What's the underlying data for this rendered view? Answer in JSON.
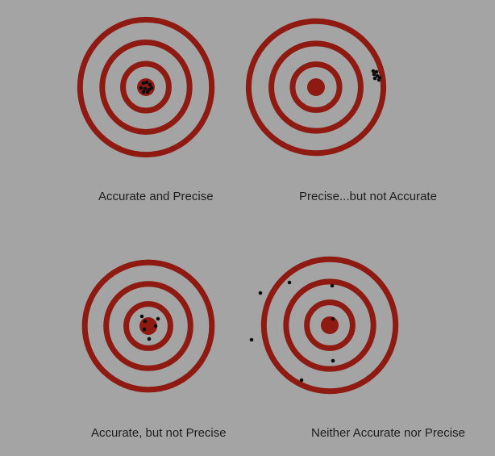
{
  "colors": {
    "background": "#a4a4a4",
    "ring": "#8e1a12",
    "dot": "#0d0d0d",
    "caption": "#1e1e1e"
  },
  "targets": [
    {
      "caption": "Accurate and Precise",
      "shots": [
        [
          -3,
          -5
        ],
        [
          1,
          -6
        ],
        [
          5,
          -3
        ],
        [
          -6,
          1
        ],
        [
          -1,
          2
        ],
        [
          4,
          3
        ],
        [
          -3,
          6
        ],
        [
          2,
          6
        ],
        [
          7,
          1
        ]
      ]
    },
    {
      "caption": "Precise...but not Accurate",
      "shots": [
        [
          71,
          -20
        ],
        [
          75,
          -19
        ],
        [
          72,
          -16
        ],
        [
          76,
          -14
        ],
        [
          79,
          -12
        ],
        [
          73,
          -11
        ],
        [
          78,
          -9
        ]
      ]
    },
    {
      "caption": "Accurate, but not Precise",
      "shots": [
        [
          -8,
          -12
        ],
        [
          -4,
          -6
        ],
        [
          12,
          -9
        ],
        [
          9,
          0
        ],
        [
          -5,
          4
        ],
        [
          1,
          16
        ]
      ]
    },
    {
      "caption": "Neither Accurate nor Precise",
      "shots": [
        [
          -86,
          -40
        ],
        [
          -50,
          -53
        ],
        [
          3,
          -49
        ],
        [
          4,
          -8
        ],
        [
          -97,
          18
        ],
        [
          4,
          44
        ],
        [
          -35,
          68
        ]
      ]
    }
  ]
}
